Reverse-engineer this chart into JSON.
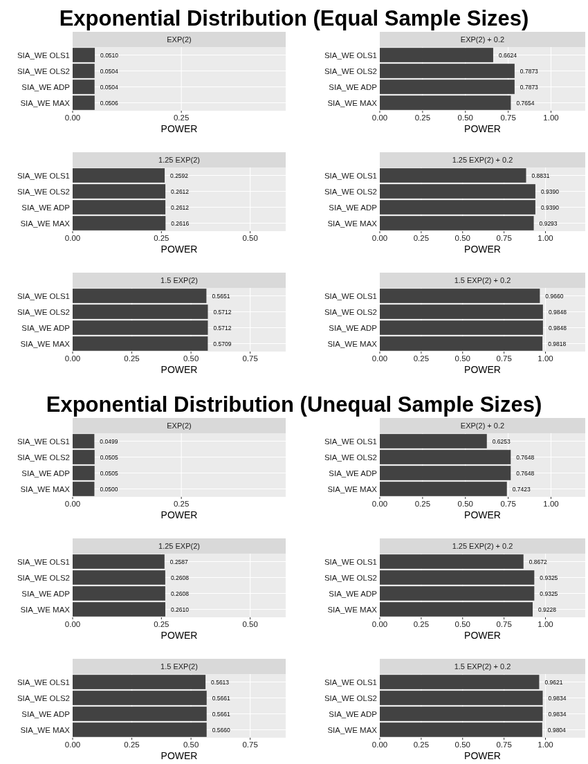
{
  "chart_data": [
    {
      "type": "bar",
      "orientation": "horizontal",
      "annotations": [
        "Exponential Distribution (Equal Sample Sizes)"
      ],
      "title": "EXP(2)",
      "xlabel": "POWER",
      "categories": [
        "SIA_WE OLS1",
        "SIA_WE OLS2",
        "SIA_WE ADP",
        "SIA_WE MAX"
      ],
      "values": [
        0.051,
        0.0504,
        0.0504,
        0.0506
      ],
      "value_labels": [
        "0.0510",
        "0.0504",
        "0.0504",
        "0.0506"
      ],
      "color": "#424242",
      "xlim": [
        0,
        0.49
      ],
      "xticks": [
        {
          "value": 0,
          "label": "0.00"
        },
        {
          "value": 0.25,
          "label": "0.25"
        }
      ],
      "grid": true
    },
    {
      "type": "bar",
      "orientation": "horizontal",
      "title": "EXP(2) + 0.2",
      "xlabel": "POWER",
      "categories": [
        "SIA_WE OLS1",
        "SIA_WE OLS2",
        "SIA_WE ADP",
        "SIA_WE MAX"
      ],
      "values": [
        0.6624,
        0.7873,
        0.7873,
        0.7654
      ],
      "value_labels": [
        "0.6624",
        "0.7873",
        "0.7873",
        "0.7654"
      ],
      "color": "#424242",
      "xlim": [
        0,
        1.2
      ],
      "xticks": [
        {
          "value": 0,
          "label": "0.00"
        },
        {
          "value": 0.25,
          "label": "0.25"
        },
        {
          "value": 0.5,
          "label": "0.50"
        },
        {
          "value": 0.75,
          "label": "0.75"
        },
        {
          "value": 1,
          "label": "1.00"
        }
      ],
      "grid": true
    },
    {
      "type": "bar",
      "orientation": "horizontal",
      "title": "1.25 EXP(2)",
      "xlabel": "POWER",
      "categories": [
        "SIA_WE OLS1",
        "SIA_WE OLS2",
        "SIA_WE ADP",
        "SIA_WE MAX"
      ],
      "values": [
        0.2592,
        0.2612,
        0.2612,
        0.2616
      ],
      "value_labels": [
        "0.2592",
        "0.2612",
        "0.2612",
        "0.2616"
      ],
      "color": "#424242",
      "xlim": [
        0,
        0.6
      ],
      "xticks": [
        {
          "value": 0,
          "label": "0.00"
        },
        {
          "value": 0.25,
          "label": "0.25"
        },
        {
          "value": 0.5,
          "label": "0.50"
        }
      ],
      "grid": true
    },
    {
      "type": "bar",
      "orientation": "horizontal",
      "title": "1.25 EXP(2) + 0.2",
      "xlabel": "POWER",
      "categories": [
        "SIA_WE OLS1",
        "SIA_WE OLS2",
        "SIA_WE ADP",
        "SIA_WE MAX"
      ],
      "values": [
        0.8831,
        0.939,
        0.939,
        0.9293
      ],
      "value_labels": [
        "0.8831",
        "0.9390",
        "0.9390",
        "0.9293"
      ],
      "color": "#424242",
      "xlim": [
        0,
        1.24
      ],
      "xticks": [
        {
          "value": 0,
          "label": "0.00"
        },
        {
          "value": 0.25,
          "label": "0.25"
        },
        {
          "value": 0.5,
          "label": "0.50"
        },
        {
          "value": 0.75,
          "label": "0.75"
        },
        {
          "value": 1,
          "label": "1.00"
        }
      ],
      "grid": true
    },
    {
      "type": "bar",
      "orientation": "horizontal",
      "title": "1.5 EXP(2)",
      "xlabel": "POWER",
      "categories": [
        "SIA_WE OLS1",
        "SIA_WE OLS2",
        "SIA_WE ADP",
        "SIA_WE MAX"
      ],
      "values": [
        0.5651,
        0.5712,
        0.5712,
        0.5709
      ],
      "value_labels": [
        "0.5651",
        "0.5712",
        "0.5712",
        "0.5709"
      ],
      "color": "#424242",
      "xlim": [
        0,
        0.9
      ],
      "xticks": [
        {
          "value": 0,
          "label": "0.00"
        },
        {
          "value": 0.25,
          "label": "0.25"
        },
        {
          "value": 0.5,
          "label": "0.50"
        },
        {
          "value": 0.75,
          "label": "0.75"
        }
      ],
      "grid": true
    },
    {
      "type": "bar",
      "orientation": "horizontal",
      "title": "1.5 EXP(2) + 0.2",
      "xlabel": "POWER",
      "categories": [
        "SIA_WE OLS1",
        "SIA_WE OLS2",
        "SIA_WE ADP",
        "SIA_WE MAX"
      ],
      "values": [
        0.966,
        0.9848,
        0.9848,
        0.9818
      ],
      "value_labels": [
        "0.9660",
        "0.9848",
        "0.9848",
        "0.9818"
      ],
      "color": "#424242",
      "xlim": [
        0,
        1.24
      ],
      "xticks": [
        {
          "value": 0,
          "label": "0.00"
        },
        {
          "value": 0.25,
          "label": "0.25"
        },
        {
          "value": 0.5,
          "label": "0.50"
        },
        {
          "value": 0.75,
          "label": "0.75"
        },
        {
          "value": 1,
          "label": "1.00"
        }
      ],
      "grid": true
    },
    {
      "type": "bar",
      "orientation": "horizontal",
      "annotations": [
        "Exponential Distribution (Unequal Sample Sizes)"
      ],
      "title": "EXP(2)",
      "xlabel": "POWER",
      "categories": [
        "SIA_WE OLS1",
        "SIA_WE OLS2",
        "SIA_WE ADP",
        "SIA_WE MAX"
      ],
      "values": [
        0.0499,
        0.0505,
        0.0505,
        0.05
      ],
      "value_labels": [
        "0.0499",
        "0.0505",
        "0.0505",
        "0.0500"
      ],
      "color": "#424242",
      "xlim": [
        0,
        0.49
      ],
      "xticks": [
        {
          "value": 0,
          "label": "0.00"
        },
        {
          "value": 0.25,
          "label": "0.25"
        }
      ],
      "grid": true
    },
    {
      "type": "bar",
      "orientation": "horizontal",
      "title": "EXP(2) + 0.2",
      "xlabel": "POWER",
      "categories": [
        "SIA_WE OLS1",
        "SIA_WE OLS2",
        "SIA_WE ADP",
        "SIA_WE MAX"
      ],
      "values": [
        0.6253,
        0.7648,
        0.7648,
        0.7423
      ],
      "value_labels": [
        "0.6253",
        "0.7648",
        "0.7648",
        "0.7423"
      ],
      "color": "#424242",
      "xlim": [
        0,
        1.2
      ],
      "xticks": [
        {
          "value": 0,
          "label": "0.00"
        },
        {
          "value": 0.25,
          "label": "0.25"
        },
        {
          "value": 0.5,
          "label": "0.50"
        },
        {
          "value": 0.75,
          "label": "0.75"
        },
        {
          "value": 1,
          "label": "1.00"
        }
      ],
      "grid": true
    },
    {
      "type": "bar",
      "orientation": "horizontal",
      "title": "1.25 EXP(2)",
      "xlabel": "POWER",
      "categories": [
        "SIA_WE OLS1",
        "SIA_WE OLS2",
        "SIA_WE ADP",
        "SIA_WE MAX"
      ],
      "values": [
        0.2587,
        0.2608,
        0.2608,
        0.261
      ],
      "value_labels": [
        "0.2587",
        "0.2608",
        "0.2608",
        "0.2610"
      ],
      "color": "#424242",
      "xlim": [
        0,
        0.6
      ],
      "xticks": [
        {
          "value": 0,
          "label": "0.00"
        },
        {
          "value": 0.25,
          "label": "0.25"
        },
        {
          "value": 0.5,
          "label": "0.50"
        }
      ],
      "grid": true
    },
    {
      "type": "bar",
      "orientation": "horizontal",
      "title": "1.25 EXP(2) + 0.2",
      "xlabel": "POWER",
      "categories": [
        "SIA_WE OLS1",
        "SIA_WE OLS2",
        "SIA_WE ADP",
        "SIA_WE MAX"
      ],
      "values": [
        0.8672,
        0.9325,
        0.9325,
        0.9228
      ],
      "value_labels": [
        "0.8672",
        "0.9325",
        "0.9325",
        "0.9228"
      ],
      "color": "#424242",
      "xlim": [
        0,
        1.24
      ],
      "xticks": [
        {
          "value": 0,
          "label": "0.00"
        },
        {
          "value": 0.25,
          "label": "0.25"
        },
        {
          "value": 0.5,
          "label": "0.50"
        },
        {
          "value": 0.75,
          "label": "0.75"
        },
        {
          "value": 1,
          "label": "1.00"
        }
      ],
      "grid": true
    },
    {
      "type": "bar",
      "orientation": "horizontal",
      "title": "1.5 EXP(2)",
      "xlabel": "POWER",
      "categories": [
        "SIA_WE OLS1",
        "SIA_WE OLS2",
        "SIA_WE ADP",
        "SIA_WE MAX"
      ],
      "values": [
        0.5613,
        0.5661,
        0.5661,
        0.566
      ],
      "value_labels": [
        "0.5613",
        "0.5661",
        "0.5661",
        "0.5660"
      ],
      "color": "#424242",
      "xlim": [
        0,
        0.9
      ],
      "xticks": [
        {
          "value": 0,
          "label": "0.00"
        },
        {
          "value": 0.25,
          "label": "0.25"
        },
        {
          "value": 0.5,
          "label": "0.50"
        },
        {
          "value": 0.75,
          "label": "0.75"
        }
      ],
      "grid": true
    },
    {
      "type": "bar",
      "orientation": "horizontal",
      "title": "1.5 EXP(2) + 0.2",
      "xlabel": "POWER",
      "categories": [
        "SIA_WE OLS1",
        "SIA_WE OLS2",
        "SIA_WE ADP",
        "SIA_WE MAX"
      ],
      "values": [
        0.9621,
        0.9834,
        0.9834,
        0.9804
      ],
      "value_labels": [
        "0.9621",
        "0.9834",
        "0.9834",
        "0.9804"
      ],
      "color": "#424242",
      "xlim": [
        0,
        1.24
      ],
      "xticks": [
        {
          "value": 0,
          "label": "0.00"
        },
        {
          "value": 0.25,
          "label": "0.25"
        },
        {
          "value": 0.5,
          "label": "0.50"
        },
        {
          "value": 0.75,
          "label": "0.75"
        },
        {
          "value": 1,
          "label": "1.00"
        }
      ],
      "grid": true
    }
  ]
}
